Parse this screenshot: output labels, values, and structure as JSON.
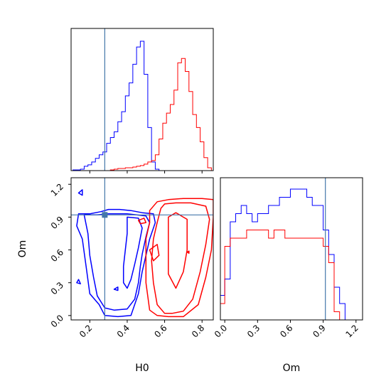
{
  "chart_data": {
    "type": "corner",
    "parameters": [
      "H0",
      "Om"
    ],
    "xlabel_h0": "H0",
    "xlabel_om": "Om",
    "ylabel_om": "Om",
    "truth": {
      "H0": 0.28,
      "Om": 0.92,
      "color": "#4477aa"
    },
    "colors": {
      "blue": "#0000ff",
      "red": "#ff0000"
    },
    "h0_axis": {
      "range": [
        0.1,
        0.86
      ],
      "ticks": [
        "0.2",
        "0.4",
        "0.6",
        "0.8"
      ],
      "tick_values": [
        0.2,
        0.4,
        0.6,
        0.8
      ]
    },
    "om_axis": {
      "range": [
        -0.04,
        1.26
      ],
      "ticks": [
        "0.0",
        "0.3",
        "0.6",
        "0.9",
        "1.2"
      ],
      "tick_values": [
        0.0,
        0.3,
        0.6,
        0.9,
        1.2
      ]
    },
    "hist_h0": {
      "bin_width": 0.02,
      "blue_bins_x": [
        0.12,
        0.14,
        0.16,
        0.18,
        0.2,
        0.22,
        0.24,
        0.26,
        0.28,
        0.3,
        0.32,
        0.34,
        0.36,
        0.38,
        0.4,
        0.42,
        0.44,
        0.46,
        0.48,
        0.5,
        0.52,
        0.54,
        0.56
      ],
      "blue_counts": [
        1,
        1,
        2,
        6,
        8,
        12,
        17,
        22,
        26,
        38,
        46,
        54,
        68,
        82,
        104,
        122,
        148,
        172,
        180,
        134,
        60,
        12,
        2
      ],
      "red_bins_x": [
        0.32,
        0.34,
        0.36,
        0.38,
        0.4,
        0.42,
        0.44,
        0.46,
        0.48,
        0.5,
        0.52,
        0.54,
        0.56,
        0.58,
        0.6,
        0.62,
        0.64,
        0.66,
        0.68,
        0.7,
        0.72,
        0.74,
        0.76,
        0.78,
        0.8,
        0.82,
        0.84
      ],
      "red_counts": [
        1,
        2,
        3,
        3,
        4,
        4,
        5,
        6,
        7,
        9,
        12,
        14,
        22,
        44,
        66,
        80,
        92,
        112,
        150,
        156,
        138,
        110,
        78,
        60,
        40,
        18,
        4
      ]
    },
    "hist_om": {
      "bin_width": 0.05,
      "blue_bins_x": [
        -0.025,
        0.025,
        0.075,
        0.125,
        0.175,
        0.225,
        0.275,
        0.325,
        0.375,
        0.425,
        0.475,
        0.525,
        0.575,
        0.625,
        0.675,
        0.725,
        0.775,
        0.825,
        0.875,
        0.925,
        0.975,
        1.025,
        1.075
      ],
      "blue_counts": [
        3,
        5,
        12,
        13,
        14,
        13,
        12,
        13,
        13,
        14,
        14,
        15,
        15,
        16,
        16,
        16,
        15,
        14,
        14,
        11,
        8,
        4,
        2
      ],
      "red_bins_x": [
        -0.025,
        0.025,
        0.075,
        0.125,
        0.175,
        0.225,
        0.275,
        0.325,
        0.375,
        0.425,
        0.475,
        0.525,
        0.575,
        0.625,
        0.675,
        0.725,
        0.775,
        0.825,
        0.875,
        0.925,
        0.975,
        1.025,
        1.075
      ],
      "red_counts": [
        2,
        9,
        10,
        10,
        10,
        11,
        11,
        11,
        11,
        10,
        11,
        11,
        10,
        10,
        10,
        10,
        10,
        10,
        10,
        9,
        7,
        1,
        0
      ]
    },
    "contours_blue": [
      [
        [
          0.14,
          0.93
        ],
        [
          0.2,
          0.93
        ],
        [
          0.26,
          0.95
        ],
        [
          0.3,
          0.97
        ],
        [
          0.36,
          0.97
        ],
        [
          0.42,
          0.96
        ],
        [
          0.48,
          0.94
        ],
        [
          0.54,
          0.93
        ],
        [
          0.55,
          0.85
        ],
        [
          0.52,
          0.7
        ],
        [
          0.5,
          0.55
        ],
        [
          0.48,
          0.4
        ],
        [
          0.46,
          0.2
        ],
        [
          0.42,
          0.0
        ],
        [
          0.35,
          -0.01
        ],
        [
          0.28,
          0.0
        ],
        [
          0.25,
          0.1
        ],
        [
          0.2,
          0.2
        ],
        [
          0.18,
          0.45
        ],
        [
          0.16,
          0.7
        ],
        [
          0.13,
          0.82
        ],
        [
          0.14,
          0.93
        ]
      ],
      [
        [
          0.17,
          0.92
        ],
        [
          0.24,
          0.92
        ],
        [
          0.3,
          0.93
        ],
        [
          0.4,
          0.93
        ],
        [
          0.5,
          0.91
        ],
        [
          0.52,
          0.85
        ],
        [
          0.5,
          0.72
        ],
        [
          0.48,
          0.56
        ],
        [
          0.47,
          0.45
        ],
        [
          0.46,
          0.3
        ],
        [
          0.44,
          0.15
        ],
        [
          0.4,
          0.06
        ],
        [
          0.33,
          0.05
        ],
        [
          0.28,
          0.07
        ],
        [
          0.24,
          0.18
        ],
        [
          0.22,
          0.35
        ],
        [
          0.2,
          0.55
        ],
        [
          0.19,
          0.75
        ],
        [
          0.17,
          0.92
        ]
      ],
      [
        [
          0.4,
          0.9
        ],
        [
          0.46,
          0.89
        ],
        [
          0.48,
          0.8
        ],
        [
          0.46,
          0.62
        ],
        [
          0.44,
          0.47
        ],
        [
          0.42,
          0.33
        ],
        [
          0.4,
          0.25
        ],
        [
          0.38,
          0.3
        ],
        [
          0.38,
          0.45
        ],
        [
          0.39,
          0.6
        ],
        [
          0.4,
          0.75
        ],
        [
          0.4,
          0.9
        ]
      ],
      [
        [
          0.14,
          1.12
        ],
        [
          0.16,
          1.15
        ],
        [
          0.16,
          1.1
        ],
        [
          0.14,
          1.12
        ]
      ],
      [
        [
          0.13,
          0.3
        ],
        [
          0.14,
          0.33
        ],
        [
          0.15,
          0.29
        ],
        [
          0.13,
          0.3
        ]
      ],
      [
        [
          0.33,
          0.24
        ],
        [
          0.35,
          0.26
        ],
        [
          0.35,
          0.23
        ],
        [
          0.33,
          0.24
        ]
      ]
    ],
    "contours_red": [
      [
        [
          0.52,
          0.96
        ],
        [
          0.56,
          1.04
        ],
        [
          0.62,
          1.06
        ],
        [
          0.7,
          1.07
        ],
        [
          0.8,
          1.07
        ],
        [
          0.86,
          1.06
        ],
        [
          0.86,
          0.9
        ],
        [
          0.85,
          0.6
        ],
        [
          0.82,
          0.35
        ],
        [
          0.78,
          0.1
        ],
        [
          0.7,
          -0.01
        ],
        [
          0.62,
          -0.01
        ],
        [
          0.56,
          0.0
        ],
        [
          0.52,
          0.05
        ],
        [
          0.5,
          0.3
        ],
        [
          0.5,
          0.5
        ],
        [
          0.5,
          0.7
        ],
        [
          0.52,
          0.85
        ],
        [
          0.52,
          0.96
        ]
      ],
      [
        [
          0.58,
          0.98
        ],
        [
          0.6,
          1.02
        ],
        [
          0.66,
          1.03
        ],
        [
          0.74,
          1.03
        ],
        [
          0.82,
          1.0
        ],
        [
          0.84,
          0.88
        ],
        [
          0.82,
          0.65
        ],
        [
          0.79,
          0.4
        ],
        [
          0.75,
          0.15
        ],
        [
          0.7,
          0.04
        ],
        [
          0.64,
          0.02
        ],
        [
          0.6,
          0.02
        ],
        [
          0.56,
          0.1
        ],
        [
          0.54,
          0.3
        ],
        [
          0.53,
          0.5
        ],
        [
          0.54,
          0.7
        ],
        [
          0.56,
          0.85
        ],
        [
          0.58,
          0.98
        ]
      ],
      [
        [
          0.52,
          0.6
        ],
        [
          0.56,
          0.65
        ],
        [
          0.57,
          0.55
        ],
        [
          0.54,
          0.5
        ],
        [
          0.52,
          0.6
        ]
      ],
      [
        [
          0.46,
          0.87
        ],
        [
          0.49,
          0.89
        ],
        [
          0.5,
          0.85
        ],
        [
          0.47,
          0.84
        ],
        [
          0.46,
          0.87
        ]
      ],
      [
        [
          0.62,
          0.9
        ],
        [
          0.66,
          0.94
        ],
        [
          0.72,
          0.88
        ],
        [
          0.72,
          0.6
        ],
        [
          0.7,
          0.4
        ],
        [
          0.66,
          0.25
        ],
        [
          0.62,
          0.38
        ],
        [
          0.62,
          0.6
        ],
        [
          0.62,
          0.9
        ]
      ],
      [
        [
          0.72,
          0.58
        ],
        [
          0.73,
          0.59
        ],
        [
          0.73,
          0.57
        ],
        [
          0.72,
          0.58
        ]
      ]
    ]
  }
}
